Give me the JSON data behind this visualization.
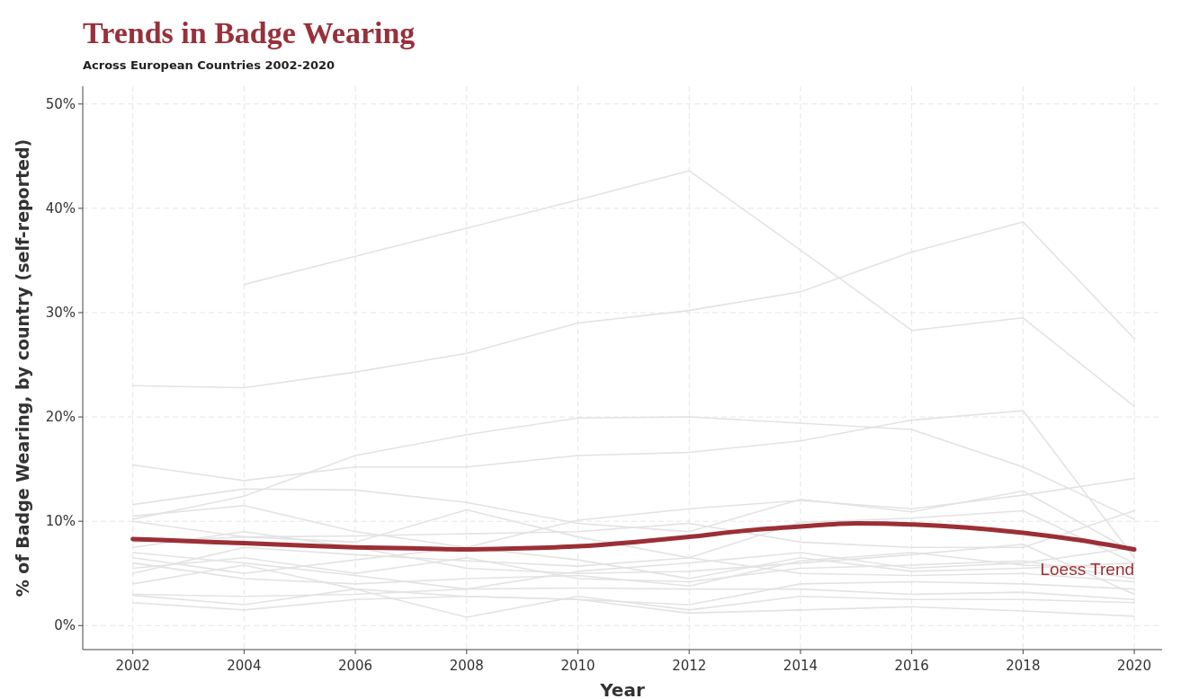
{
  "chart_data": {
    "type": "line",
    "title": "Trends in Badge Wearing",
    "subtitle": "Across European Countries 2002-2020",
    "xlabel": "Year",
    "ylabel": "% of Badge Wearing, by country (self-reported)",
    "x": [
      2002,
      2004,
      2006,
      2008,
      2010,
      2012,
      2014,
      2016,
      2018,
      2020
    ],
    "xlim": [
      2001.1,
      2020.5
    ],
    "xticks": [
      2002,
      2004,
      2006,
      2008,
      2010,
      2012,
      2014,
      2016,
      2018,
      2020
    ],
    "ylim": [
      -2.3,
      51.7
    ],
    "yticks": [
      {
        "value": 0,
        "label": "0%"
      },
      {
        "value": 10,
        "label": "10%"
      },
      {
        "value": 20,
        "label": "20%"
      },
      {
        "value": 30,
        "label": "30%"
      },
      {
        "value": 40,
        "label": "40%"
      },
      {
        "value": 50,
        "label": "50%"
      }
    ],
    "grid": true,
    "line_style": "solid",
    "series": [
      {
        "color": "#e3e3e3",
        "values": [
          null,
          32.7,
          35.4,
          38.1,
          40.8,
          43.6,
          36.0,
          28.3,
          29.5,
          21.0
        ]
      },
      {
        "color": "#e3e3e3",
        "values": [
          23.0,
          22.8,
          24.3,
          26.1,
          29.0,
          30.2,
          32.0,
          35.8,
          38.7,
          27.5
        ]
      },
      {
        "color": "#e3e3e3",
        "values": [
          10.2,
          12.4,
          16.3,
          18.3,
          19.9,
          20.0,
          19.4,
          18.8,
          15.2,
          10.2
        ]
      },
      {
        "color": "#e3e3e3",
        "values": [
          15.4,
          13.9,
          15.2,
          15.2,
          16.3,
          16.6,
          17.7,
          19.7,
          20.6,
          6.5
        ]
      },
      {
        "color": "#e3e3e3",
        "values": [
          11.6,
          13.1,
          13.0,
          11.8,
          9.8,
          9.0,
          12.1,
          10.9,
          12.9,
          7.0
        ]
      },
      {
        "color": "#e3e3e3",
        "values": [
          10.5,
          11.5,
          9.0,
          7.5,
          10.1,
          11.2,
          12.0,
          11.2,
          12.5,
          14.1
        ]
      },
      {
        "color": "#e3e3e3",
        "values": [
          10.0,
          8.5,
          8.0,
          11.1,
          8.5,
          6.5,
          9.9,
          10.3,
          11.0,
          6.0
        ]
      },
      {
        "color": "#e3e3e3",
        "values": [
          8.0,
          8.5,
          8.6,
          8.8,
          9.0,
          9.8,
          8.0,
          7.5,
          7.5,
          11.0
        ]
      },
      {
        "color": "#e3e3e3",
        "values": [
          7.0,
          6.0,
          4.8,
          3.5,
          5.2,
          6.0,
          7.0,
          5.5,
          6.0,
          7.5
        ]
      },
      {
        "color": "#e3e3e3",
        "values": [
          6.5,
          5.0,
          6.3,
          7.5,
          6.3,
          4.5,
          6.5,
          5.2,
          5.5,
          6.0
        ]
      },
      {
        "color": "#e3e3e3",
        "values": [
          6.0,
          4.5,
          4.0,
          4.5,
          4.8,
          3.8,
          6.2,
          7.0,
          5.8,
          5.5
        ]
      },
      {
        "color": "#e3e3e3",
        "values": [
          5.5,
          6.5,
          5.0,
          6.5,
          4.5,
          4.2,
          5.5,
          5.8,
          6.2,
          4.5
        ]
      },
      {
        "color": "#e3e3e3",
        "values": [
          4.0,
          5.8,
          3.5,
          2.8,
          2.5,
          2.0,
          4.0,
          4.2,
          4.0,
          3.5
        ]
      },
      {
        "color": "#e3e3e3",
        "values": [
          3.0,
          2.8,
          3.0,
          3.5,
          3.6,
          3.5,
          3.5,
          3.0,
          3.2,
          2.5
        ]
      },
      {
        "color": "#e3e3e3",
        "values": [
          2.9,
          2.0,
          3.5,
          0.8,
          2.8,
          1.5,
          2.8,
          2.5,
          2.5,
          2.2
        ]
      },
      {
        "color": "#e3e3e3",
        "values": [
          2.2,
          1.5,
          2.5,
          2.8,
          2.5,
          1.2,
          1.5,
          1.8,
          1.4,
          0.9
        ]
      },
      {
        "color": "#e3e3e3",
        "values": [
          7.5,
          9.0,
          7.5,
          5.5,
          5.0,
          5.2,
          6.0,
          6.8,
          7.8,
          3.0
        ]
      },
      {
        "color": "#e3e3e3",
        "values": [
          5.0,
          7.5,
          6.8,
          6.2,
          5.7,
          6.5,
          5.0,
          4.8,
          5.0,
          4.2
        ]
      },
      {
        "color": "#9b2f35",
        "name": "Loess Trend",
        "x": [
          2002,
          2003,
          2004,
          2005,
          2006,
          2007,
          2008,
          2009,
          2010,
          2011,
          2012,
          2013,
          2014,
          2015,
          2016,
          2017,
          2018,
          2019,
          2020
        ],
        "values": [
          8.3,
          8.1,
          7.9,
          7.7,
          7.5,
          7.4,
          7.3,
          7.4,
          7.6,
          8.0,
          8.5,
          9.1,
          9.5,
          9.8,
          9.7,
          9.4,
          8.9,
          8.2,
          7.3
        ]
      }
    ]
  }
}
